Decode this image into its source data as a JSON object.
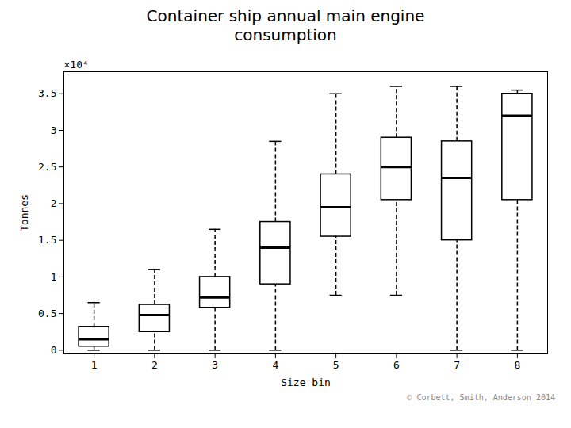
{
  "chart_data": {
    "type": "box",
    "title": "Container ship annual main engine\nconsumption",
    "x_label": "Size bin",
    "y_label": "Tonnes",
    "annotations": [
      "×10⁴"
    ],
    "caption": "© Corbett, Smith, Anderson  2014",
    "categories": [
      1,
      2,
      3,
      4,
      5,
      6,
      7,
      8
    ],
    "whislo": [
      0.0,
      0.0,
      0.0,
      0.0,
      0.75,
      0.75,
      0.0,
      0.0
    ],
    "q1": [
      0.05,
      0.25,
      0.58,
      0.9,
      1.55,
      2.05,
      1.5,
      2.05
    ],
    "median": [
      0.15,
      0.48,
      0.72,
      1.4,
      1.95,
      2.5,
      2.35,
      3.2
    ],
    "q3": [
      0.32,
      0.62,
      1.0,
      1.75,
      2.4,
      2.9,
      2.85,
      3.5
    ],
    "whishi": [
      0.65,
      1.1,
      1.65,
      2.85,
      3.5,
      3.6,
      3.6,
      3.55
    ],
    "xlim": [
      0.5,
      8.5
    ],
    "xticks": [
      1,
      2,
      3,
      4,
      5,
      6,
      7,
      8
    ],
    "ylim": [
      -0.05,
      3.8
    ],
    "yticks": [
      0,
      0.5,
      1.0,
      1.5,
      2.0,
      2.5,
      3.0,
      3.5
    ],
    "grid": false
  }
}
